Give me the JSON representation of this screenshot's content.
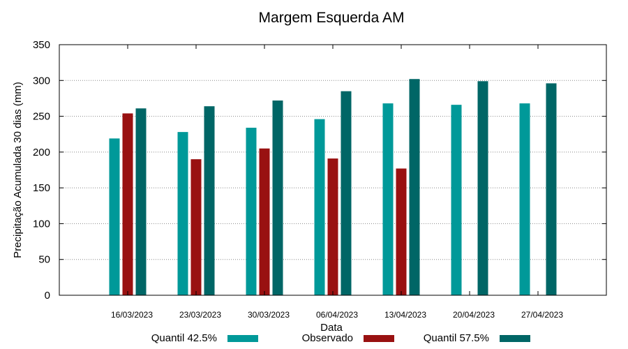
{
  "chart_data": {
    "type": "bar",
    "title": "Margem Esquerda AM",
    "xlabel": "Data",
    "ylabel": "Precipitação Acumulada 30 dias (mm)",
    "ylim": [
      0,
      350
    ],
    "yticks": [
      "0",
      "50",
      "100",
      "150",
      "200",
      "250",
      "300",
      "350"
    ],
    "grid": true,
    "legend_position": "bottom",
    "categories": [
      "16/03/2023",
      "23/03/2023",
      "30/03/2023",
      "06/04/2023",
      "13/04/2023",
      "20/04/2023",
      "27/04/2023"
    ],
    "series": [
      {
        "name": "Quantil 42.5%",
        "color": "#009999",
        "values": [
          219,
          228,
          234,
          246,
          268,
          266,
          268
        ]
      },
      {
        "name": "Observado",
        "color": "#991111",
        "values": [
          254,
          190,
          205,
          191,
          177,
          null,
          null
        ]
      },
      {
        "name": "Quantil 57.5%",
        "color": "#006666",
        "values": [
          261,
          264,
          272,
          285,
          302,
          299,
          296
        ]
      }
    ]
  }
}
